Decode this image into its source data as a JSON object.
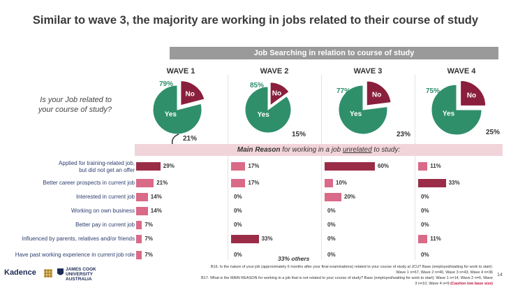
{
  "page": {
    "title": "Similar to wave 3, the majority are working in jobs related to their course of study",
    "banner": "Job Searching in relation to course of study",
    "question_line1": "Is your Job related to",
    "question_line2": "your course of study?",
    "reason_prefix": "Main Reason",
    "reason_rest": " for working in a job ",
    "reason_word": "unrelated",
    "reason_suffix": " to study:",
    "others_note": "33% others",
    "page_number": "14",
    "footnote_line1": "B16. Is the nature of your job (approximately 6 months after your final examinations) related to your course of study at JCU? Base (employed/waiting for work to start):",
    "footnote_line2": "Wave 1 n=67, Wave 2 n=40, Wave 3 n=43, Wave 4 n=36",
    "footnote_line3": "B17. What is the MAIN REASON for working in a job that is not related to your course of study? Base (employed/waiting for work to start): Wave 1 n=14, Wave 2 n=6, Wave",
    "footnote_line4_pre": "3 n=10, Wave 4 n=9 ",
    "footnote_line4_caution": "(Caution low base size)",
    "logo_left": "Kadence",
    "logo_right_1": "JAMES COOK",
    "logo_right_2": "UNIVERSITY",
    "logo_right_3": "AUSTRALIA"
  },
  "colors": {
    "yes": "#2f8f6b",
    "no": "#8a1f3c",
    "bar_dark": "#9b2c48",
    "bar_light": "#d96a88",
    "banner": "#9a9a9a",
    "reason_bg": "#f1d4da"
  },
  "chart_data": {
    "pies": {
      "type": "pie",
      "waves": [
        "WAVE 1",
        "WAVE 2",
        "WAVE 3",
        "WAVE 4"
      ],
      "labels": [
        "Yes",
        "No"
      ],
      "yes_values": [
        79,
        85,
        77,
        75
      ],
      "no_values": [
        21,
        15,
        23,
        25
      ],
      "yes_labels": [
        "79%",
        "85%",
        "77%",
        "75%"
      ],
      "no_labels": [
        "21%",
        "15%",
        "23%",
        "25%"
      ]
    },
    "bars": {
      "type": "bar",
      "categories_line1": [
        "Applied for training-related job,",
        "Better career prospects in current job",
        "Interested in current job",
        "Working on own business",
        "Better pay in current job",
        "Influenced by parents, relatives and/or friends",
        "Have past working experience in current job role"
      ],
      "categories_line2": [
        "but did not get an offer",
        "",
        "",
        "",
        "",
        "",
        ""
      ],
      "series": [
        {
          "name": "WAVE 1",
          "values": [
            29,
            21,
            14,
            14,
            7,
            7,
            7
          ]
        },
        {
          "name": "WAVE 2",
          "values": [
            17,
            17,
            0,
            0,
            0,
            33,
            0
          ]
        },
        {
          "name": "WAVE 3",
          "values": [
            60,
            10,
            20,
            0,
            0,
            0,
            0
          ]
        },
        {
          "name": "WAVE 4",
          "values": [
            11,
            33,
            0,
            0,
            0,
            11,
            0
          ]
        }
      ],
      "value_labels": [
        [
          "29%",
          "21%",
          "14%",
          "14%",
          "7%",
          "7%",
          "7%"
        ],
        [
          "17%",
          "17%",
          "0%",
          "0%",
          "0%",
          "33%",
          "0%"
        ],
        [
          "60%",
          "10%",
          "20%",
          "0%",
          "0%",
          "0%",
          "0%"
        ],
        [
          "11%",
          "33%",
          "0%",
          "0%",
          "0%",
          "11%",
          "0%"
        ]
      ],
      "dark_threshold": 25,
      "xlim": [
        0,
        100
      ]
    }
  }
}
